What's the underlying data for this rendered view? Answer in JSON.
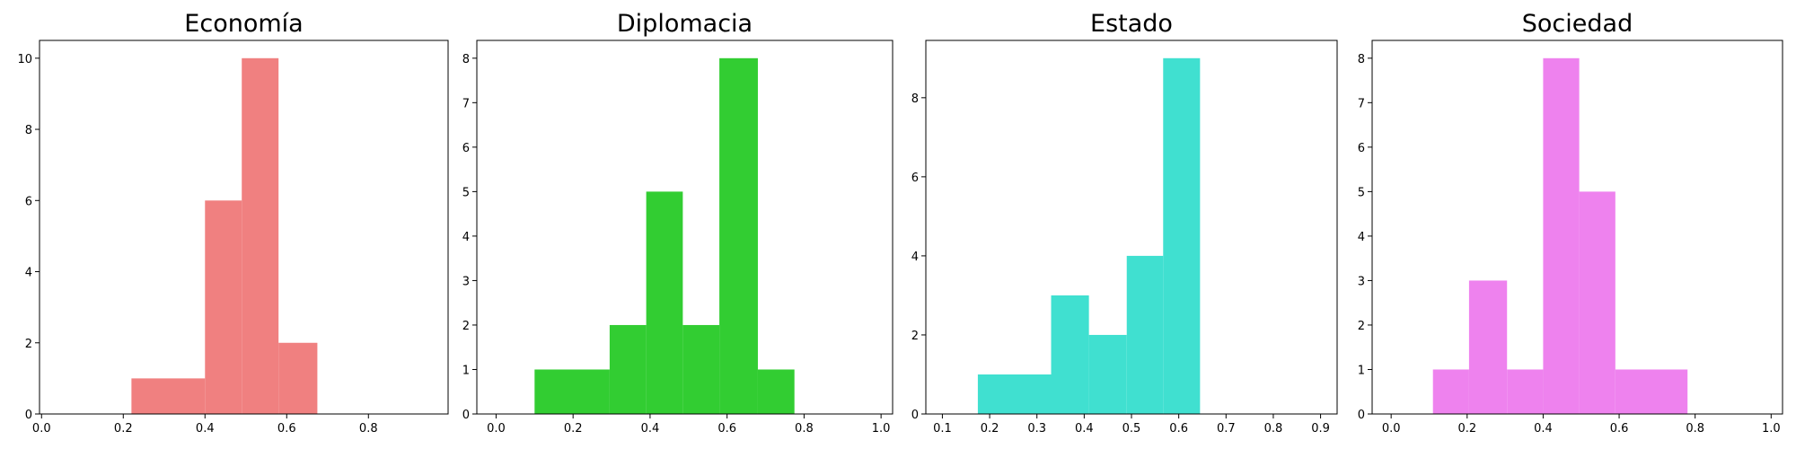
{
  "chart_data": [
    {
      "type": "bar",
      "title": "Economía",
      "color": "#f08080",
      "xlim": [
        -0.005,
        0.995
      ],
      "ylim": [
        0,
        10.5
      ],
      "xticks": [
        0.0,
        0.2,
        0.4,
        0.6,
        0.8
      ],
      "xtick_labels": [
        "0.0",
        "0.2",
        "0.4",
        "0.6",
        "0.8"
      ],
      "yticks": [
        0,
        2,
        4,
        6,
        8,
        10
      ],
      "ytick_labels": [
        "0",
        "2",
        "4",
        "6",
        "8",
        "10"
      ],
      "bins": [
        {
          "x0": 0.22,
          "x1": 0.4,
          "count": 1
        },
        {
          "x0": 0.4,
          "x1": 0.49,
          "count": 6
        },
        {
          "x0": 0.49,
          "x1": 0.58,
          "count": 10
        },
        {
          "x0": 0.58,
          "x1": 0.675,
          "count": 2
        }
      ]
    },
    {
      "type": "bar",
      "title": "Diplomacia",
      "color": "#32cd32",
      "xlim": [
        -0.05,
        1.03
      ],
      "ylim": [
        0,
        8.4
      ],
      "xticks": [
        0.0,
        0.2,
        0.4,
        0.6,
        0.8,
        1.0
      ],
      "xtick_labels": [
        "0.0",
        "0.2",
        "0.4",
        "0.6",
        "0.8",
        "1.0"
      ],
      "yticks": [
        0,
        1,
        2,
        3,
        4,
        5,
        6,
        7,
        8
      ],
      "ytick_labels": [
        "0",
        "1",
        "2",
        "3",
        "4",
        "5",
        "6",
        "7",
        "8"
      ],
      "bins": [
        {
          "x0": 0.1,
          "x1": 0.295,
          "count": 1
        },
        {
          "x0": 0.295,
          "x1": 0.39,
          "count": 2
        },
        {
          "x0": 0.39,
          "x1": 0.485,
          "count": 5
        },
        {
          "x0": 0.485,
          "x1": 0.58,
          "count": 2
        },
        {
          "x0": 0.58,
          "x1": 0.68,
          "count": 8
        },
        {
          "x0": 0.68,
          "x1": 0.775,
          "count": 1
        }
      ]
    },
    {
      "type": "bar",
      "title": "Estado",
      "color": "#40e0d0",
      "xlim": [
        0.065,
        0.935
      ],
      "ylim": [
        0,
        9.45
      ],
      "xticks": [
        0.1,
        0.2,
        0.3,
        0.4,
        0.5,
        0.6,
        0.7,
        0.8,
        0.9
      ],
      "xtick_labels": [
        "0.1",
        "0.2",
        "0.3",
        "0.4",
        "0.5",
        "0.6",
        "0.7",
        "0.8",
        "0.9"
      ],
      "yticks": [
        0,
        2,
        4,
        6,
        8
      ],
      "ytick_labels": [
        "0",
        "2",
        "4",
        "6",
        "8"
      ],
      "bins": [
        {
          "x0": 0.175,
          "x1": 0.33,
          "count": 1
        },
        {
          "x0": 0.33,
          "x1": 0.41,
          "count": 3
        },
        {
          "x0": 0.41,
          "x1": 0.49,
          "count": 2
        },
        {
          "x0": 0.49,
          "x1": 0.567,
          "count": 4
        },
        {
          "x0": 0.567,
          "x1": 0.645,
          "count": 9
        }
      ]
    },
    {
      "type": "bar",
      "title": "Sociedad",
      "color": "#ee82ee",
      "xlim": [
        -0.05,
        1.03
      ],
      "ylim": [
        0,
        8.4
      ],
      "xticks": [
        0.0,
        0.2,
        0.4,
        0.6,
        0.8,
        1.0
      ],
      "xtick_labels": [
        "0.0",
        "0.2",
        "0.4",
        "0.6",
        "0.8",
        "1.0"
      ],
      "yticks": [
        0,
        1,
        2,
        3,
        4,
        5,
        6,
        7,
        8
      ],
      "ytick_labels": [
        "0",
        "1",
        "2",
        "3",
        "4",
        "5",
        "6",
        "7",
        "8"
      ],
      "bins": [
        {
          "x0": 0.11,
          "x1": 0.205,
          "count": 1
        },
        {
          "x0": 0.205,
          "x1": 0.305,
          "count": 3
        },
        {
          "x0": 0.305,
          "x1": 0.4,
          "count": 1
        },
        {
          "x0": 0.4,
          "x1": 0.495,
          "count": 8
        },
        {
          "x0": 0.495,
          "x1": 0.59,
          "count": 5
        },
        {
          "x0": 0.59,
          "x1": 0.78,
          "count": 1
        }
      ]
    }
  ]
}
